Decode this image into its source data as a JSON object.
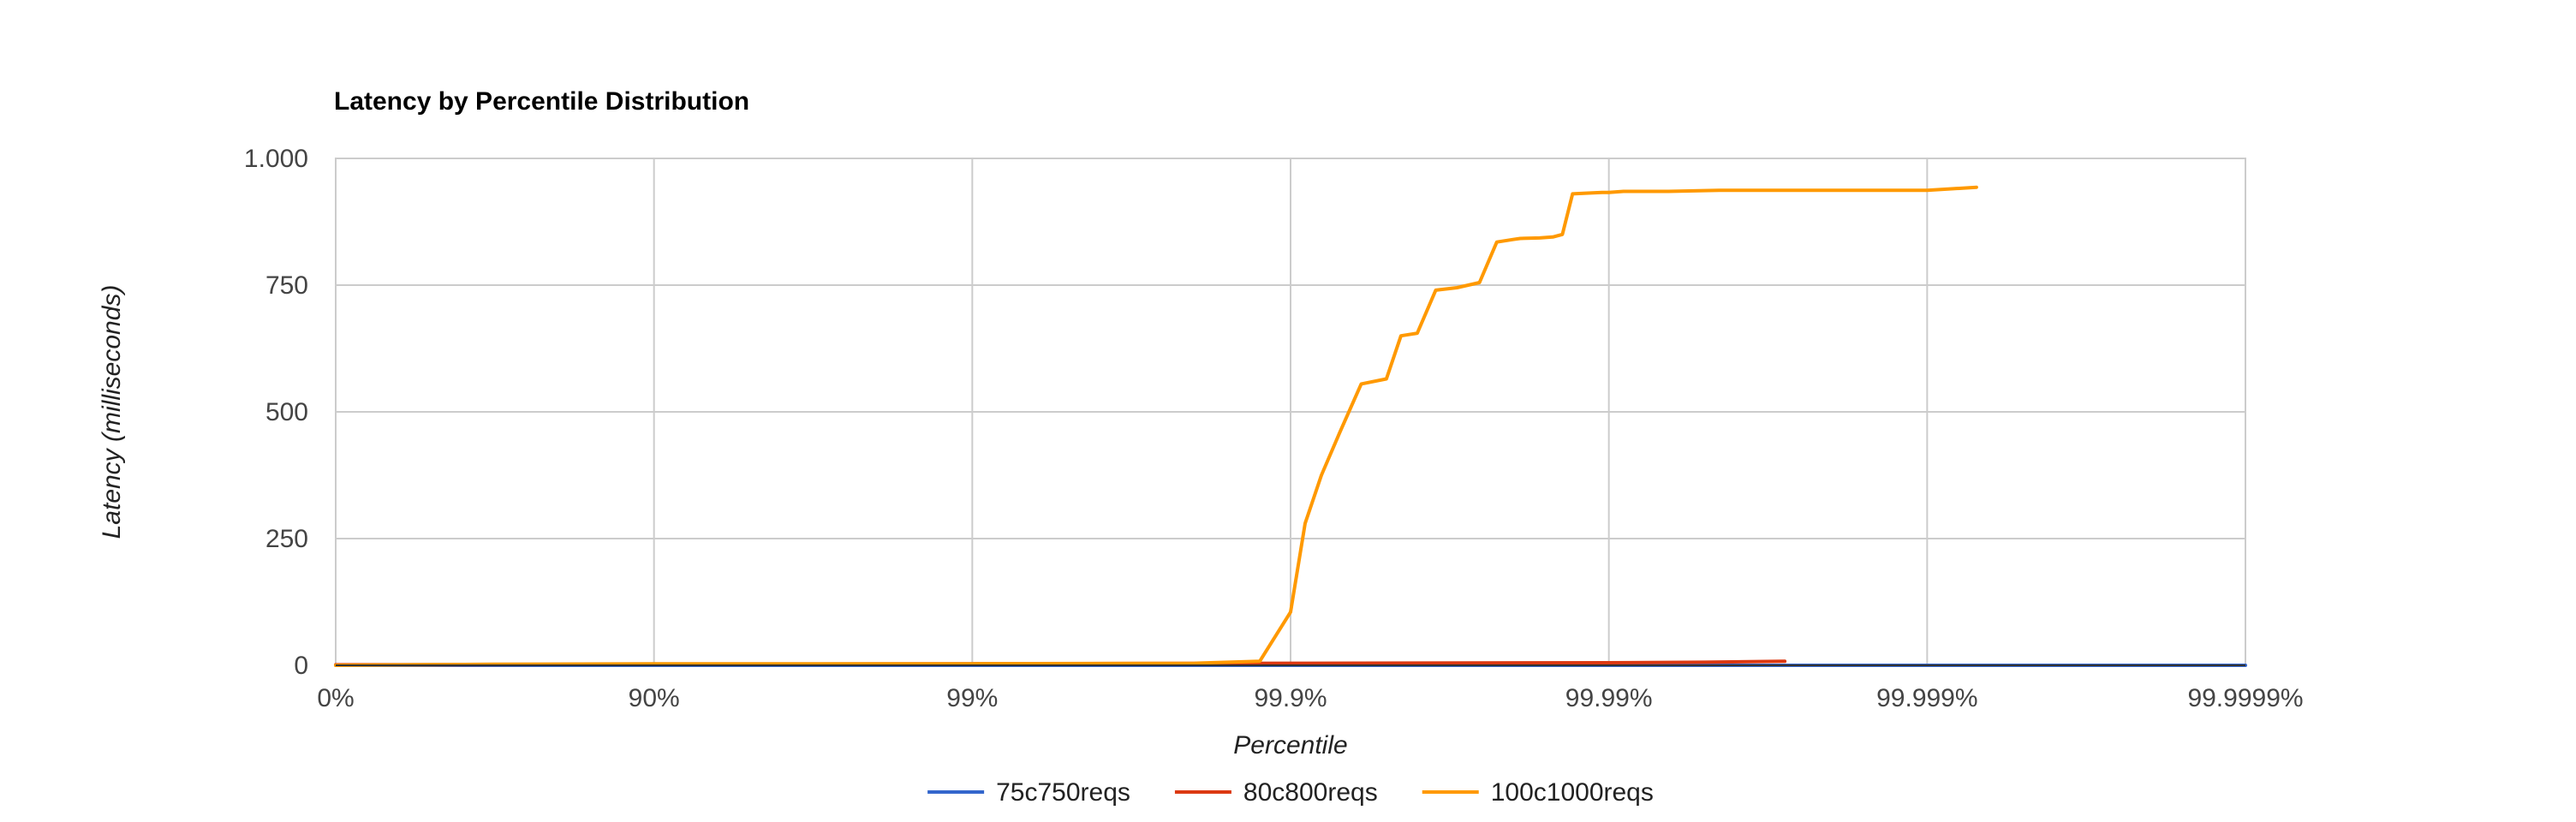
{
  "chart_data": {
    "type": "line",
    "title": "Latency by Percentile Distribution",
    "xlabel": "Percentile",
    "ylabel": "Latency (milliseconds)",
    "x_scale": "log-percentile",
    "x_ticks": [
      0,
      90,
      99,
      99.9,
      99.99,
      99.999,
      99.9999
    ],
    "x_tick_labels": [
      "0%",
      "90%",
      "99%",
      "99.9%",
      "99.99%",
      "99.999%",
      "99.9999%"
    ],
    "y_ticks": [
      0,
      250,
      500,
      750,
      1000
    ],
    "y_tick_labels": [
      "0",
      "250",
      "500",
      "750",
      "1.000"
    ],
    "ylim": [
      0,
      1000
    ],
    "grid": true,
    "legend_position": "bottom",
    "series": [
      {
        "name": "75c750reqs",
        "color": "#3366cc",
        "x": [
          0,
          90,
          99,
          99.9,
          99.99,
          99.999,
          99.9999
        ],
        "y": [
          0,
          0,
          0,
          0,
          0,
          0,
          0
        ]
      },
      {
        "name": "80c800reqs",
        "color": "#dc3912",
        "x": [
          0,
          90,
          99,
          99.9,
          99.99,
          99.995,
          99.9972
        ],
        "y": [
          1,
          2,
          3,
          4,
          5,
          6,
          8
        ]
      },
      {
        "name": "100c1000reqs",
        "color": "#ff9900",
        "x": [
          0,
          68,
          90,
          99,
          99.8,
          99.875,
          99.9,
          99.91,
          99.92,
          99.93,
          99.94,
          99.95,
          99.955,
          99.96,
          99.965,
          99.97,
          99.9745,
          99.9775,
          99.98,
          99.981,
          99.9835,
          99.985,
          99.986,
          99.987,
          99.988,
          99.9895,
          99.99,
          99.991,
          99.9935,
          99.9955,
          99.9965,
          99.9975,
          99.9985,
          99.999,
          99.9993
        ],
        "y": [
          0,
          2,
          3,
          3,
          4,
          8,
          105,
          280,
          375,
          460,
          555,
          565,
          650,
          655,
          740,
          745,
          755,
          835,
          840,
          842,
          843,
          845,
          850,
          930,
          931,
          933,
          933,
          935,
          935,
          937,
          937,
          937,
          937,
          937,
          943
        ]
      }
    ]
  }
}
